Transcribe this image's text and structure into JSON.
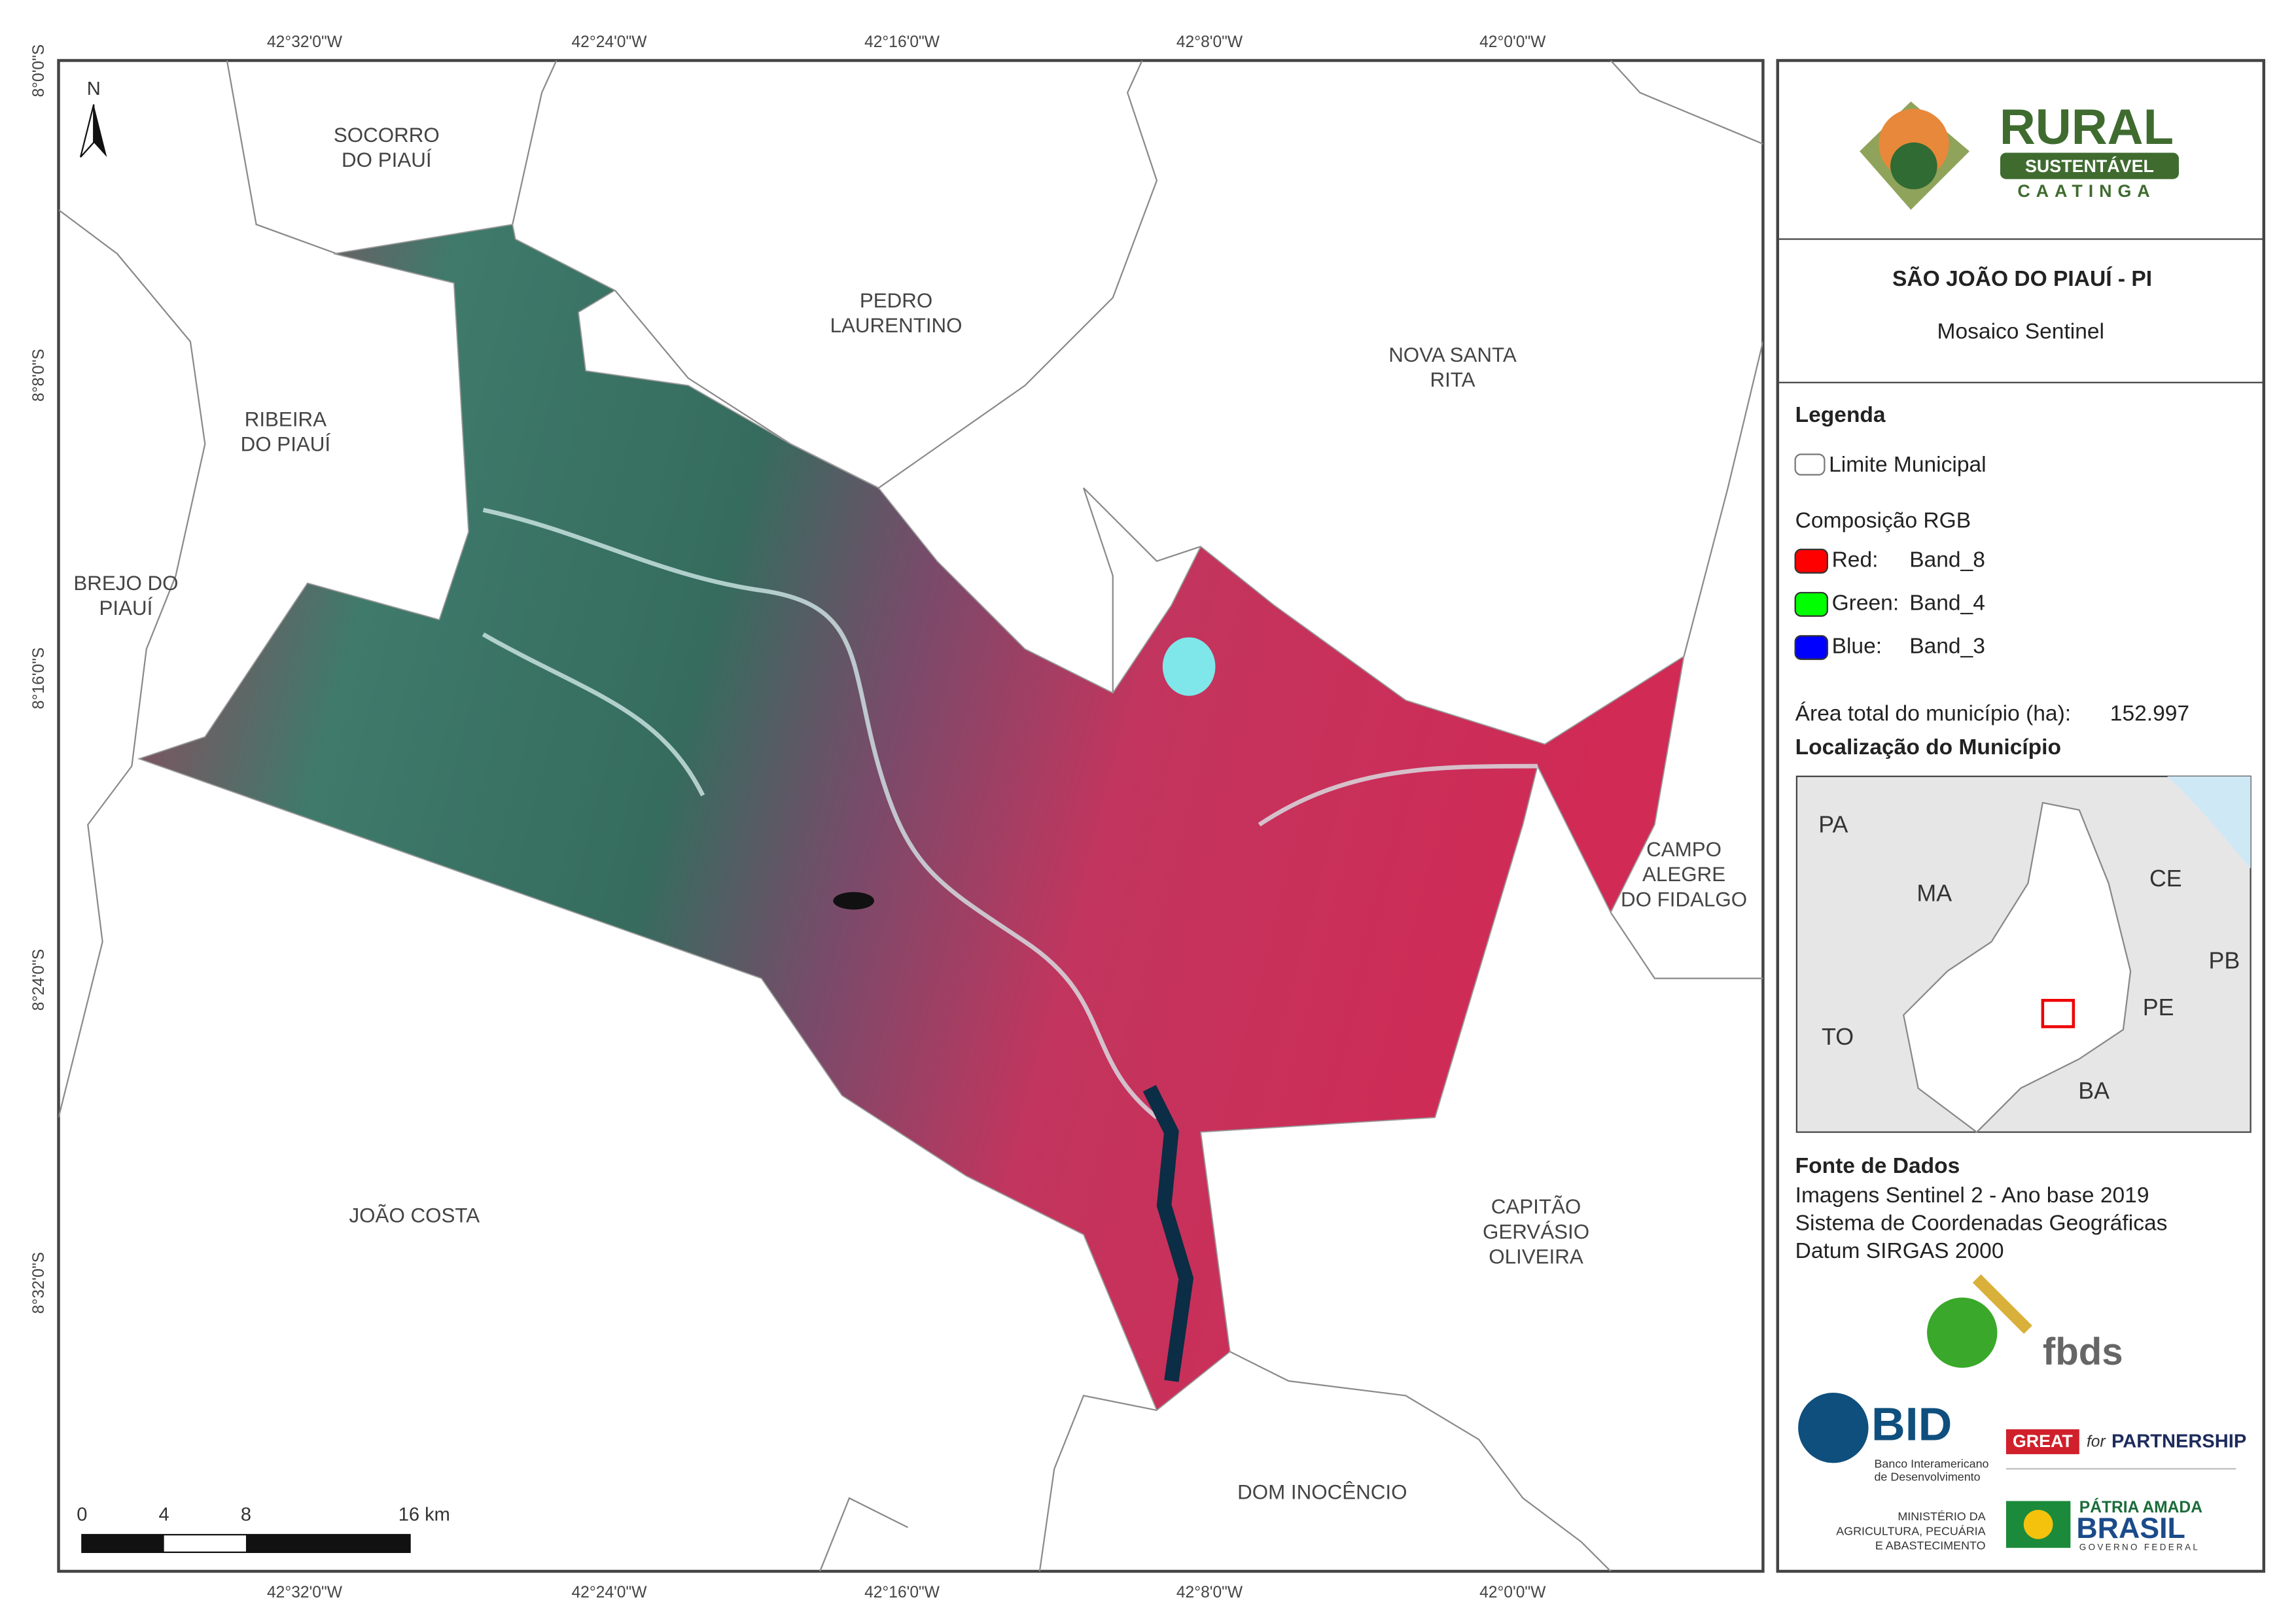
{
  "map": {
    "top_longitude_labels": [
      "42°32'0\"W",
      "42°24'0\"W",
      "42°16'0\"W",
      "42°8'0\"W",
      "42°0'0\"W"
    ],
    "bottom_longitude_labels": [
      "42°32'0\"W",
      "42°24'0\"W",
      "42°16'0\"W",
      "42°8'0\"W",
      "42°0'0\"W"
    ],
    "latitude_labels": [
      "8°0'0\"S",
      "8°8'0\"S",
      "8°16'0\"S",
      "8°24'0\"S",
      "8°32'0\"S"
    ],
    "north_label": "N",
    "municipalities": [
      {
        "lines": [
          "SOCORRO",
          "DO PIAUÍ"
        ]
      },
      {
        "lines": [
          "PEDRO",
          "LAURENTINO"
        ]
      },
      {
        "lines": [
          "NOVA SANTA",
          "RITA"
        ]
      },
      {
        "lines": [
          "RIBEIRA",
          "DO PIAUÍ"
        ]
      },
      {
        "lines": [
          "BREJO DO",
          "PIAUÍ"
        ]
      },
      {
        "lines": [
          "CAMPO",
          "ALEGRE",
          "DO FIDALGO"
        ]
      },
      {
        "lines": [
          "JOÃO COSTA"
        ]
      },
      {
        "lines": [
          "CAPITÃO",
          "GERVÁSIO",
          "OLIVEIRA"
        ]
      },
      {
        "lines": [
          "DOM INOCÊNCIO"
        ]
      }
    ],
    "scale_labels": [
      "0",
      "4",
      "8",
      "16 km"
    ]
  },
  "panel": {
    "logo": {
      "line1": "RURAL",
      "line2": "SUSTENTÁVEL",
      "line3": "CAATINGA"
    },
    "title": "SÃO JOÃO DO PIAUÍ - PI",
    "subtitle": "Mosaico Sentinel",
    "legend": {
      "title": "Legenda",
      "boundary": "Limite Municipal",
      "rgb_title": "Composição RGB",
      "bands": [
        {
          "label": "Red:",
          "band": "Band_8",
          "color": "#ff0000"
        },
        {
          "label": "Green:",
          "band": "Band_4",
          "color": "#00ff00"
        },
        {
          "label": "Blue:",
          "band": "Band_3",
          "color": "#0000ff"
        }
      ]
    },
    "area_label": "Área total do município (ha):",
    "area_value": "152.997",
    "location_title": "Localização do Município",
    "states": [
      "PA",
      "MA",
      "CE",
      "PB",
      "PE",
      "TO",
      "BA"
    ],
    "sources_title": "Fonte de Dados",
    "sources": [
      "Imagens Sentinel 2 - Ano base 2019",
      "Sistema de Coordenadas Geográficas",
      "Datum SIRGAS 2000"
    ],
    "partners": {
      "fbds": "fbds",
      "bid": "BID",
      "bid_name": [
        "Banco Interamericano",
        "de Desenvolvimento"
      ],
      "great": "GREAT",
      "great_for": "for",
      "great_partnership": "PARTNERSHIP",
      "ministry": [
        "MINISTÉRIO DA",
        "AGRICULTURA, PECUÁRIA",
        "E ABASTECIMENTO"
      ],
      "brasil": [
        "PÁTRIA AMADA",
        "BRASIL",
        "GOVERNO FEDERAL"
      ]
    }
  }
}
